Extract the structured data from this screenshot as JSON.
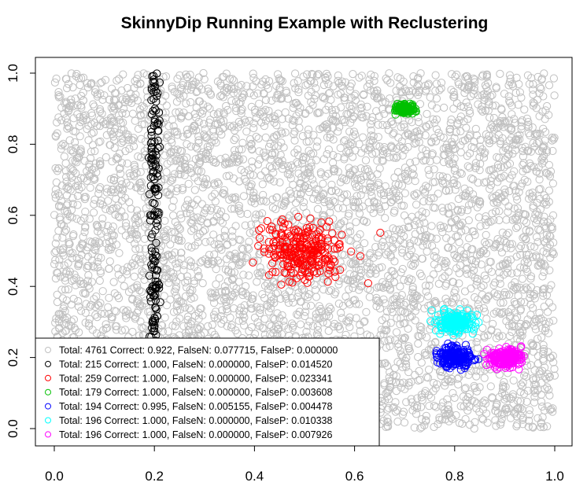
{
  "chart_data": {
    "type": "scatter",
    "title": "SkinnyDip Running Example with Reclustering",
    "xlabel": "",
    "ylabel": "",
    "xlim": [
      0.0,
      1.0
    ],
    "ylim": [
      0.0,
      1.0
    ],
    "x_ticks": [
      "0.0",
      "0.2",
      "0.4",
      "0.6",
      "0.8",
      "1.0"
    ],
    "y_ticks": [
      "0.0",
      "0.2",
      "0.4",
      "0.6",
      "0.8",
      "1.0"
    ],
    "grid": false,
    "marker": "open-circle",
    "legend": {
      "placement": "bottom-left",
      "entries": [
        "Total: 4761 Correct: 0.922, FalseN: 0.077715, FalseP: 0.000000",
        "Total: 215 Correct: 1.000, FalseN: 0.000000, FalseP: 0.014520",
        "Total: 259 Correct: 1.000, FalseN: 0.000000, FalseP: 0.023341",
        "Total: 179 Correct: 1.000, FalseN: 0.000000, FalseP: 0.003608",
        "Total: 194 Correct: 0.995, FalseN: 0.005155, FalseP: 0.004478",
        "Total: 196 Correct: 1.000, FalseN: 0.000000, FalseP: 0.010338",
        "Total: 196 Correct: 1.000, FalseN: 0.000000, FalseP: 0.007926"
      ]
    },
    "series": [
      {
        "color": "#c0c0c0",
        "count": 4761,
        "shape": "uniform",
        "x_range": [
          0.0,
          1.0
        ],
        "y_range": [
          0.0,
          1.0
        ]
      },
      {
        "color": "#000000",
        "count": 215,
        "shape": "vertical-line",
        "x_center": 0.2,
        "x_spread": 0.005,
        "y_range": [
          0.0,
          1.0
        ]
      },
      {
        "color": "#ff0000",
        "count": 259,
        "shape": "gaussian",
        "center": [
          0.5,
          0.5
        ],
        "spread": [
          0.04,
          0.04
        ]
      },
      {
        "color": "#00c000",
        "count": 179,
        "shape": "gaussian",
        "center": [
          0.7,
          0.9
        ],
        "spread": [
          0.008,
          0.006
        ]
      },
      {
        "color": "#0000ff",
        "count": 194,
        "shape": "gaussian",
        "center": [
          0.8,
          0.2
        ],
        "spread": [
          0.017,
          0.013
        ]
      },
      {
        "color": "#00ffff",
        "count": 196,
        "shape": "gaussian",
        "center": [
          0.8,
          0.3
        ],
        "spread": [
          0.017,
          0.013
        ]
      },
      {
        "color": "#ff00ff",
        "count": 196,
        "shape": "gaussian",
        "center": [
          0.9,
          0.2
        ],
        "spread": [
          0.017,
          0.013
        ]
      }
    ]
  }
}
